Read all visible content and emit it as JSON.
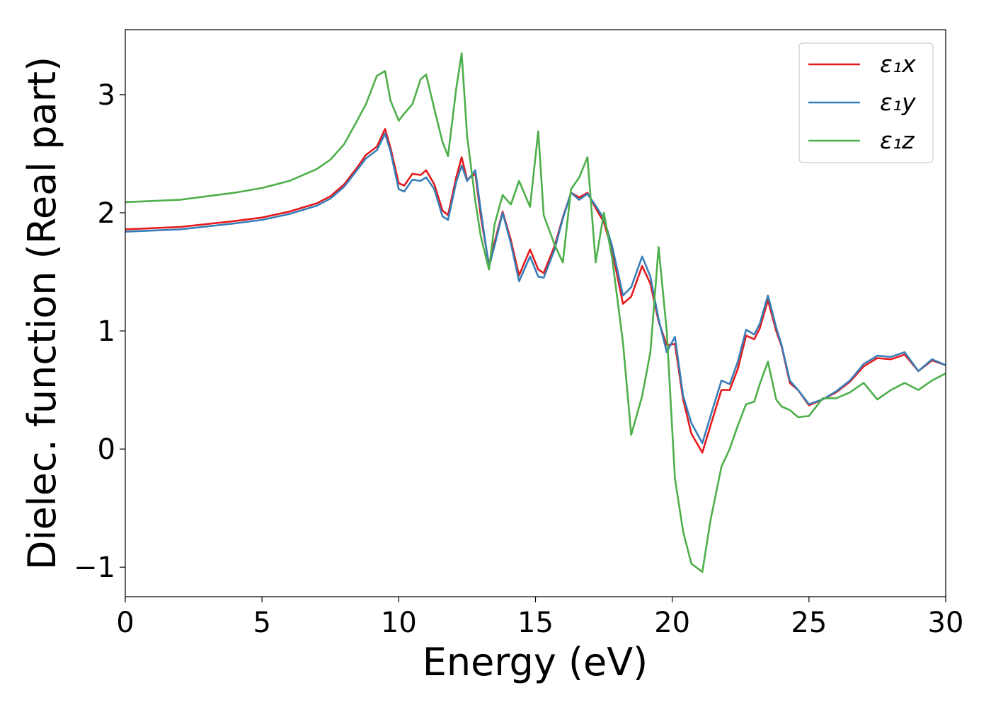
{
  "chart_data": {
    "type": "line",
    "xlabel": "Energy (eV)",
    "ylabel": "Dielec. function (Real part)",
    "xlim": [
      0,
      30
    ],
    "ylim": [
      -1.25,
      3.55
    ],
    "xticks": [
      0,
      5,
      10,
      15,
      20,
      25,
      30
    ],
    "xtick_labels": [
      "0",
      "5",
      "10",
      "15",
      "20",
      "25",
      "30"
    ],
    "yticks": [
      -1,
      0,
      1,
      2,
      3
    ],
    "ytick_labels": [
      "−1",
      "0",
      "1",
      "2",
      "3"
    ],
    "grid": false,
    "legend_position": "top-right",
    "series": [
      {
        "name": "ε₁x",
        "color": "#e41a1c",
        "x": [
          0,
          2,
          4,
          5,
          6,
          7,
          7.5,
          8,
          8.5,
          8.8,
          9.2,
          9.5,
          9.7,
          10,
          10.2,
          10.5,
          10.8,
          11,
          11.3,
          11.6,
          11.8,
          12.1,
          12.3,
          12.5,
          12.8,
          13,
          13.3,
          13.5,
          13.8,
          14.1,
          14.4,
          14.8,
          15.1,
          15.3,
          15.7,
          16,
          16.3,
          16.6,
          16.9,
          17.2,
          17.5,
          17.8,
          18.2,
          18.5,
          18.9,
          19.2,
          19.5,
          19.8,
          20.1,
          20.4,
          20.7,
          21.1,
          21.4,
          21.8,
          22.1,
          22.4,
          22.7,
          23,
          23.2,
          23.5,
          23.8,
          24,
          24.3,
          24.6,
          25,
          25.5,
          26,
          26.5,
          27,
          27.5,
          28,
          28.5,
          29,
          29.5,
          30
        ],
        "y": [
          1.86,
          1.88,
          1.93,
          1.96,
          2.01,
          2.08,
          2.14,
          2.24,
          2.39,
          2.49,
          2.56,
          2.71,
          2.55,
          2.25,
          2.23,
          2.33,
          2.32,
          2.36,
          2.24,
          2.02,
          1.98,
          2.3,
          2.47,
          2.28,
          2.33,
          1.97,
          1.56,
          1.75,
          2.01,
          1.77,
          1.47,
          1.69,
          1.52,
          1.49,
          1.72,
          1.96,
          2.17,
          2.13,
          2.17,
          2.04,
          1.92,
          1.68,
          1.23,
          1.29,
          1.55,
          1.4,
          1.08,
          0.88,
          0.89,
          0.42,
          0.13,
          -0.03,
          0.2,
          0.5,
          0.5,
          0.68,
          0.96,
          0.93,
          1.02,
          1.26,
          1.0,
          0.87,
          0.56,
          0.5,
          0.37,
          0.42,
          0.48,
          0.57,
          0.7,
          0.77,
          0.76,
          0.8,
          0.66,
          0.75,
          0.71
        ]
      },
      {
        "name": "ε₁y",
        "color": "#377eb8",
        "x": [
          0,
          2,
          4,
          5,
          6,
          7,
          7.5,
          8,
          8.5,
          8.8,
          9.2,
          9.5,
          9.7,
          10,
          10.2,
          10.5,
          10.8,
          11,
          11.3,
          11.6,
          11.8,
          12.1,
          12.3,
          12.5,
          12.8,
          13,
          13.3,
          13.5,
          13.8,
          14.1,
          14.4,
          14.8,
          15.1,
          15.3,
          15.7,
          16,
          16.3,
          16.6,
          16.9,
          17.2,
          17.5,
          17.8,
          18.2,
          18.5,
          18.9,
          19.2,
          19.5,
          19.8,
          20.1,
          20.4,
          20.7,
          21.1,
          21.4,
          21.8,
          22.1,
          22.4,
          22.7,
          23,
          23.2,
          23.5,
          23.8,
          24,
          24.3,
          24.6,
          25,
          25.5,
          26,
          26.5,
          27,
          27.5,
          28,
          28.5,
          29,
          29.5,
          30
        ],
        "y": [
          1.84,
          1.86,
          1.91,
          1.94,
          1.99,
          2.06,
          2.12,
          2.22,
          2.37,
          2.46,
          2.53,
          2.67,
          2.52,
          2.2,
          2.18,
          2.28,
          2.27,
          2.3,
          2.2,
          1.97,
          1.94,
          2.26,
          2.4,
          2.27,
          2.36,
          2.02,
          1.54,
          1.72,
          2.0,
          1.74,
          1.42,
          1.63,
          1.46,
          1.45,
          1.69,
          1.95,
          2.17,
          2.11,
          2.16,
          2.06,
          1.95,
          1.72,
          1.3,
          1.37,
          1.63,
          1.46,
          1.1,
          0.82,
          0.95,
          0.45,
          0.22,
          0.05,
          0.28,
          0.58,
          0.55,
          0.74,
          1.01,
          0.97,
          1.06,
          1.3,
          1.03,
          0.88,
          0.58,
          0.5,
          0.38,
          0.42,
          0.49,
          0.58,
          0.72,
          0.79,
          0.78,
          0.82,
          0.66,
          0.76,
          0.71
        ]
      },
      {
        "name": "ε₁z",
        "color": "#4daf4a",
        "x": [
          0,
          2,
          4,
          5,
          6,
          7,
          7.5,
          8,
          8.5,
          8.8,
          9.2,
          9.5,
          9.7,
          10,
          10.2,
          10.5,
          10.8,
          11,
          11.3,
          11.6,
          11.8,
          12.1,
          12.3,
          12.5,
          12.8,
          13,
          13.3,
          13.5,
          13.8,
          14.1,
          14.4,
          14.8,
          15.1,
          15.3,
          15.7,
          16,
          16.3,
          16.6,
          16.9,
          17.2,
          17.5,
          17.8,
          18.2,
          18.5,
          18.9,
          19.2,
          19.5,
          19.8,
          20.1,
          20.4,
          20.7,
          21.1,
          21.4,
          21.8,
          22.1,
          22.4,
          22.7,
          23,
          23.2,
          23.5,
          23.8,
          24,
          24.3,
          24.6,
          25,
          25.5,
          26,
          26.5,
          27,
          27.5,
          28,
          28.5,
          29,
          29.5,
          30
        ],
        "y": [
          2.09,
          2.11,
          2.17,
          2.21,
          2.27,
          2.37,
          2.45,
          2.58,
          2.79,
          2.92,
          3.16,
          3.2,
          2.95,
          2.78,
          2.84,
          2.92,
          3.13,
          3.17,
          2.88,
          2.6,
          2.48,
          3.05,
          3.35,
          2.65,
          2.1,
          1.8,
          1.52,
          1.9,
          2.15,
          2.07,
          2.27,
          2.05,
          2.69,
          1.98,
          1.73,
          1.58,
          2.2,
          2.3,
          2.47,
          1.58,
          2.0,
          1.62,
          0.9,
          0.12,
          0.45,
          0.82,
          1.71,
          1.0,
          -0.25,
          -0.7,
          -0.97,
          -1.04,
          -0.6,
          -0.15,
          0.0,
          0.2,
          0.38,
          0.4,
          0.55,
          0.74,
          0.42,
          0.36,
          0.33,
          0.27,
          0.28,
          0.43,
          0.43,
          0.48,
          0.56,
          0.42,
          0.5,
          0.56,
          0.5,
          0.58,
          0.64
        ]
      }
    ]
  }
}
